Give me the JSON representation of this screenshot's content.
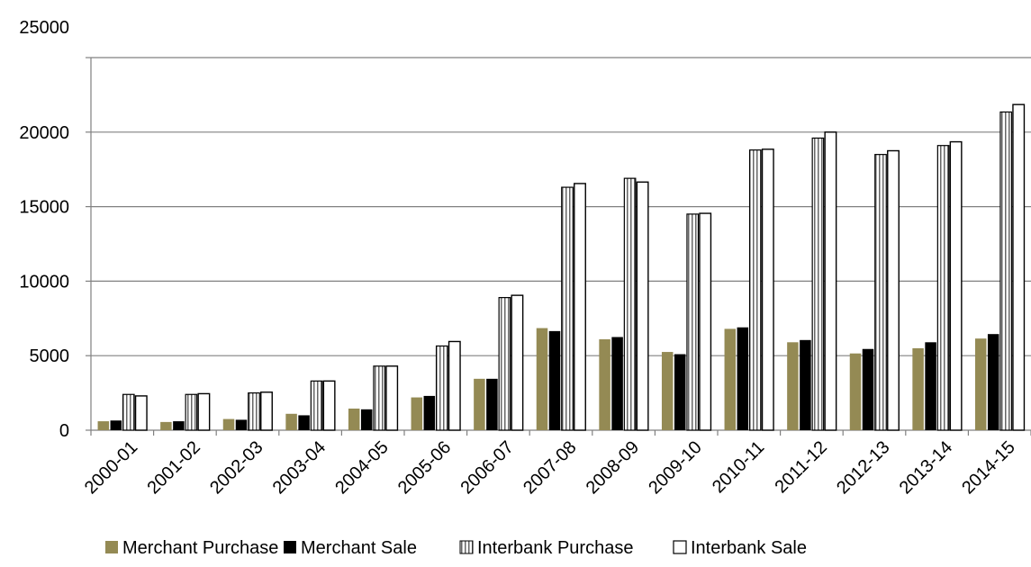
{
  "chart_data": {
    "type": "bar",
    "categories": [
      "2000-01",
      "2001-02",
      "2002-03",
      "2003-04",
      "2004-05",
      "2005-06",
      "2006-07",
      "2007-08",
      "2008-09",
      "2009-10",
      "2010-11",
      "2011-12",
      "2012-13",
      "2013-14",
      "2014-15"
    ],
    "series": [
      {
        "name": "Merchant Purchase",
        "color": "#948a54",
        "pattern": "solid",
        "values": [
          600,
          550,
          750,
          1100,
          1450,
          2200,
          3450,
          6850,
          6100,
          5250,
          6800,
          5900,
          5150,
          5500,
          6150
        ]
      },
      {
        "name": "Merchant  Sale",
        "color": "#000000",
        "pattern": "solid",
        "values": [
          650,
          600,
          700,
          1000,
          1400,
          2300,
          3450,
          6650,
          6250,
          5100,
          6900,
          6050,
          5450,
          5900,
          6450
        ]
      },
      {
        "name": "Interbank Purchase",
        "color": "#ffffff",
        "pattern": "vertical-stripes",
        "values": [
          2400,
          2400,
          2500,
          3300,
          4300,
          5650,
          8900,
          16300,
          16900,
          14500,
          18800,
          19600,
          18500,
          19100,
          21350
        ]
      },
      {
        "name": "Interbank  Sale",
        "color": "#ffffff",
        "pattern": "plain",
        "values": [
          2300,
          2450,
          2550,
          3300,
          4300,
          5950,
          9050,
          16550,
          16650,
          14550,
          18850,
          20000,
          18750,
          19350,
          21850
        ]
      }
    ],
    "yticks": [
      "0",
      "5000",
      "10000",
      "15000",
      "20000",
      "25000"
    ],
    "ylim": [
      0,
      25000
    ],
    "legend_position": "bottom",
    "grid": false
  }
}
